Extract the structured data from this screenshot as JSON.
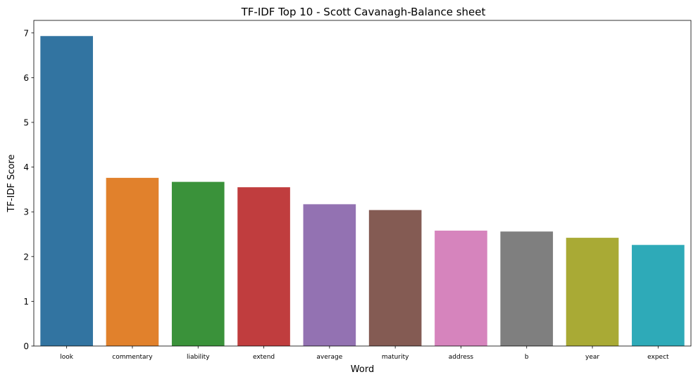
{
  "chart_data": {
    "type": "bar",
    "title": "TF-IDF Top 10 - Scott Cavanagh-Balance sheet",
    "xlabel": "Word",
    "ylabel": "TF-IDF Score",
    "categories": [
      "look",
      "commentary",
      "liability",
      "extend",
      "average",
      "maturity",
      "address",
      "b",
      "year",
      "expect"
    ],
    "values": [
      6.93,
      3.76,
      3.67,
      3.55,
      3.17,
      3.04,
      2.58,
      2.56,
      2.42,
      2.26
    ],
    "colors": [
      "#3274a1",
      "#e1812c",
      "#3a923a",
      "#c03d3e",
      "#9372b2",
      "#845b53",
      "#d684bd",
      "#7f7f7f",
      "#a9aa35",
      "#2eaab8"
    ],
    "yticks": [
      0,
      1,
      2,
      3,
      4,
      5,
      6,
      7
    ],
    "ylim": [
      0,
      7.28
    ],
    "grid": false,
    "legend": "none"
  }
}
